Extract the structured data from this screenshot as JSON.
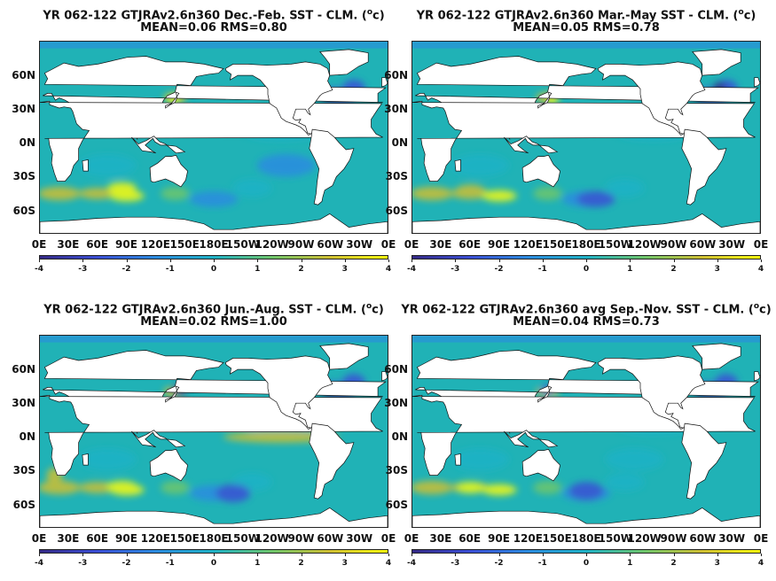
{
  "palette": [
    "#352a87",
    "#3b4fd6",
    "#2c8ce0",
    "#1fb2c6",
    "#6ec66c",
    "#cfbf32",
    "#f9fb0e"
  ],
  "land_color": "#ffffff",
  "ocean_color": "#20b2b6",
  "icons": [
    "continent-outline"
  ],
  "chart_data": [
    {
      "type": "heatmap",
      "title": "YR 062-122 GTJRAv2.6n360  Dec.-Feb. SST - CLM. (",
      "title_unit": "o",
      "title_tail": "c)",
      "subtitle": "MEAN=0.06   RMS=0.80",
      "mean": 0.06,
      "rms": 0.8,
      "xticks": [
        "0E",
        "30E",
        "60E",
        "90E",
        "120E",
        "150E",
        "180E",
        "150W",
        "120W",
        "90W",
        "60W",
        "30W",
        "0E"
      ],
      "yticks": [
        "60N",
        "30N",
        "0N",
        "30S",
        "60S"
      ],
      "xlim": [
        0,
        360
      ],
      "ylim": [
        -80,
        90
      ],
      "colorbar": {
        "ticks": [
          "-4",
          "-3",
          "-2",
          "-1",
          "0",
          "1",
          "2",
          "3",
          "4"
        ],
        "range": [
          -4,
          4
        ]
      },
      "season": "DJF"
    },
    {
      "type": "heatmap",
      "title": "YR 062-122 GTJRAv2.6n360 Mar.-May SST - CLM. (",
      "title_unit": "o",
      "title_tail": "c)",
      "subtitle": "MEAN=0.05   RMS=0.78",
      "mean": 0.05,
      "rms": 0.78,
      "xticks": [
        "0E",
        "30E",
        "60E",
        "90E",
        "120E",
        "150E",
        "180E",
        "150W",
        "120W",
        "90W",
        "60W",
        "30W",
        "0E"
      ],
      "yticks": [
        "60N",
        "30N",
        "0N",
        "30S",
        "60S"
      ],
      "xlim": [
        0,
        360
      ],
      "ylim": [
        -80,
        90
      ],
      "colorbar": {
        "ticks": [
          "-4",
          "-3",
          "-2",
          "-1",
          "0",
          "1",
          "2",
          "3",
          "4"
        ],
        "range": [
          -4,
          4
        ]
      },
      "season": "MAM"
    },
    {
      "type": "heatmap",
      "title": "YR 062-122 GTJRAv2.6n360 Jun.-Aug. SST - CLM. (",
      "title_unit": "o",
      "title_tail": "c)",
      "subtitle": "MEAN=0.02   RMS=1.00",
      "mean": 0.02,
      "rms": 1.0,
      "xticks": [
        "0E",
        "30E",
        "60E",
        "90E",
        "120E",
        "150E",
        "180E",
        "150W",
        "120W",
        "90W",
        "60W",
        "30W",
        "0E"
      ],
      "yticks": [
        "60N",
        "30N",
        "0N",
        "30S",
        "60S"
      ],
      "xlim": [
        0,
        360
      ],
      "ylim": [
        -80,
        90
      ],
      "colorbar": {
        "ticks": [
          "-4",
          "-3",
          "-2",
          "-1",
          "0",
          "1",
          "2",
          "3",
          "4"
        ],
        "range": [
          -4,
          4
        ]
      },
      "season": "JJA"
    },
    {
      "type": "heatmap",
      "title": "YR 062-122 GTJRAv2.6n360 avg Sep.-Nov. SST - CLM. (",
      "title_unit": "o",
      "title_tail": "c)",
      "subtitle": "MEAN=0.04   RMS=0.73",
      "mean": 0.04,
      "rms": 0.73,
      "xticks": [
        "0E",
        "30E",
        "60E",
        "90E",
        "120E",
        "150E",
        "180E",
        "150W",
        "120W",
        "90W",
        "60W",
        "30W",
        "0E"
      ],
      "yticks": [
        "60N",
        "30N",
        "0N",
        "30S",
        "60S"
      ],
      "xlim": [
        0,
        360
      ],
      "ylim": [
        -80,
        90
      ],
      "colorbar": {
        "ticks": [
          "-4",
          "-3",
          "-2",
          "-1",
          "0",
          "1",
          "2",
          "3",
          "4"
        ],
        "range": [
          -4,
          4
        ]
      },
      "season": "SON"
    }
  ]
}
